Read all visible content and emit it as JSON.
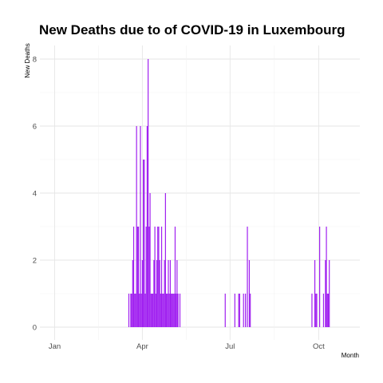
{
  "chart_data": {
    "type": "bar",
    "title": "New Deaths due to of COVID-19 in Luxembourg",
    "xlabel": "Month",
    "ylabel": "New Deaths",
    "x_range": [
      "2020-01-01",
      "2020-10-31"
    ],
    "ylim": [
      0,
      8
    ],
    "y_ticks": [
      0,
      2,
      4,
      6,
      8
    ],
    "x_ticks": [
      {
        "date": "2020-01-01",
        "label": "Jan"
      },
      {
        "date": "2020-04-01",
        "label": "Apr"
      },
      {
        "date": "2020-07-01",
        "label": "Jul"
      },
      {
        "date": "2020-10-01",
        "label": "Oct"
      }
    ],
    "grid": true,
    "bar_color": "#a020f0",
    "series": [
      {
        "dates": [
          "2020-03-18",
          "2020-03-20",
          "2020-03-21",
          "2020-03-22",
          "2020-03-23",
          "2020-03-24",
          "2020-03-25",
          "2020-03-26",
          "2020-03-27",
          "2020-03-28",
          "2020-03-29",
          "2020-03-30",
          "2020-03-31",
          "2020-04-01",
          "2020-04-02",
          "2020-04-03",
          "2020-04-04",
          "2020-04-05",
          "2020-04-06",
          "2020-04-07",
          "2020-04-08",
          "2020-04-09",
          "2020-04-10",
          "2020-04-11",
          "2020-04-12",
          "2020-04-13",
          "2020-04-14",
          "2020-04-15",
          "2020-04-16",
          "2020-04-17",
          "2020-04-18",
          "2020-04-19",
          "2020-04-20",
          "2020-04-21",
          "2020-04-22",
          "2020-04-23",
          "2020-04-24",
          "2020-04-25",
          "2020-04-26",
          "2020-04-27",
          "2020-04-28",
          "2020-04-29",
          "2020-04-30",
          "2020-05-01",
          "2020-05-02",
          "2020-05-03",
          "2020-05-04",
          "2020-05-05",
          "2020-05-06",
          "2020-05-07",
          "2020-05-08",
          "2020-05-10",
          "2020-06-26",
          "2020-07-06",
          "2020-07-10",
          "2020-07-11",
          "2020-07-15",
          "2020-07-17",
          "2020-07-19",
          "2020-07-21",
          "2020-07-22",
          "2020-09-24",
          "2020-09-27",
          "2020-09-28",
          "2020-09-29",
          "2020-10-02",
          "2020-10-06",
          "2020-10-08",
          "2020-10-09",
          "2020-10-10",
          "2020-10-11",
          "2020-10-12"
        ],
        "values": [
          1,
          1,
          1,
          2,
          3,
          1,
          1,
          6,
          3,
          3,
          1,
          6,
          1,
          2,
          5,
          5,
          1,
          3,
          6,
          8,
          3,
          4,
          1,
          1,
          1,
          2,
          3,
          1,
          2,
          3,
          3,
          2,
          1,
          3,
          1,
          1,
          2,
          4,
          1,
          1,
          2,
          1,
          2,
          1,
          1,
          1,
          1,
          3,
          1,
          2,
          1,
          1,
          1,
          1,
          1,
          1,
          1,
          1,
          3,
          2,
          1,
          1,
          2,
          1,
          1,
          3,
          1,
          2,
          3,
          1,
          1,
          2
        ]
      }
    ]
  }
}
